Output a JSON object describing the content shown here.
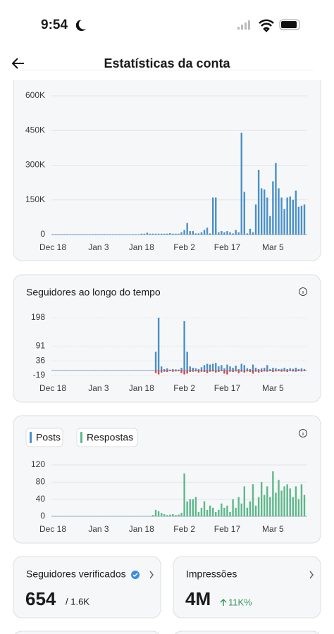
{
  "status": {
    "time": "9:54"
  },
  "header": {
    "title": "Estatísticas da conta"
  },
  "chart_data": [
    {
      "type": "bar",
      "categories": [
        "Dec 18",
        null,
        null,
        null,
        null,
        null,
        null,
        null,
        null,
        null,
        null,
        null,
        null,
        null,
        null,
        null,
        "Jan 3",
        null,
        null,
        null,
        null,
        null,
        null,
        null,
        null,
        null,
        null,
        null,
        null,
        null,
        null,
        "Jan 18",
        null,
        null,
        null,
        null,
        null,
        null,
        null,
        null,
        null,
        null,
        null,
        null,
        null,
        null,
        "Feb 2",
        null,
        null,
        null,
        null,
        null,
        null,
        null,
        null,
        null,
        null,
        null,
        null,
        null,
        null,
        "Feb 17",
        null,
        null,
        null,
        null,
        null,
        null,
        null,
        null,
        null,
        null,
        null,
        null,
        null,
        null,
        null,
        "Mar 5",
        null,
        null,
        null,
        null,
        null,
        null,
        null,
        null,
        null,
        null,
        null
      ],
      "series": [
        {
          "color": "#4a90c9",
          "values": [
            2000,
            2000,
            2000,
            2000,
            2000,
            2000,
            2000,
            2000,
            2000,
            2000,
            2000,
            2000,
            2000,
            2000,
            2000,
            2000,
            2000,
            2000,
            2000,
            2000,
            2000,
            2000,
            2000,
            2000,
            2000,
            2000,
            2000,
            2000,
            2000,
            2000,
            2000,
            4000,
            4000,
            8000,
            4000,
            4000,
            4000,
            4000,
            4000,
            4000,
            4000,
            6000,
            4000,
            4000,
            4000,
            10000,
            20000,
            50000,
            15000,
            15000,
            5000,
            5000,
            10000,
            20000,
            30000,
            5000,
            160000,
            160000,
            10000,
            15000,
            10000,
            15000,
            10000,
            5000,
            20000,
            10000,
            440000,
            185000,
            5000,
            25000,
            10000,
            130000,
            280000,
            200000,
            195000,
            160000,
            80000,
            230000,
            310000,
            200000,
            160000,
            110000,
            160000,
            165000,
            150000,
            190000,
            120000,
            125000,
            130000
          ]
        }
      ],
      "ylim": [
        0,
        600000
      ],
      "yticks": [
        0,
        {
          "value": 150000,
          "label": "150K"
        },
        {
          "value": 300000,
          "label": "300K"
        },
        {
          "value": 450000,
          "label": "450K"
        },
        {
          "value": 600000,
          "label": "600K"
        }
      ],
      "grid": true
    },
    {
      "type": "bar",
      "title": "Seguidores ao longo do tempo",
      "categories": [
        "Dec 18",
        null,
        null,
        null,
        null,
        null,
        null,
        null,
        null,
        null,
        null,
        null,
        null,
        null,
        null,
        null,
        "Jan 3",
        null,
        null,
        null,
        null,
        null,
        null,
        null,
        null,
        null,
        null,
        null,
        null,
        null,
        null,
        "Jan 18",
        null,
        null,
        null,
        null,
        null,
        null,
        null,
        null,
        null,
        null,
        null,
        null,
        null,
        null,
        "Feb 2",
        null,
        null,
        null,
        null,
        null,
        null,
        null,
        null,
        null,
        null,
        null,
        null,
        null,
        null,
        "Feb 17",
        null,
        null,
        null,
        null,
        null,
        null,
        null,
        null,
        null,
        null,
        null,
        null,
        null,
        null,
        null,
        "Mar 5",
        null,
        null,
        null,
        null,
        null,
        null,
        null,
        null,
        null,
        null,
        null
      ],
      "series": [
        {
          "color": "#4a90c9",
          "values": [
            1,
            1,
            1,
            1,
            1,
            1,
            1,
            1,
            1,
            1,
            1,
            1,
            1,
            1,
            1,
            1,
            1,
            1,
            1,
            1,
            1,
            1,
            1,
            1,
            1,
            1,
            1,
            1,
            1,
            1,
            1,
            1,
            1,
            1,
            1,
            1,
            70,
            198,
            15,
            5,
            8,
            3,
            5,
            4,
            3,
            10,
            185,
            70,
            15,
            10,
            8,
            5,
            12,
            20,
            25,
            22,
            25,
            28,
            15,
            20,
            8,
            22,
            15,
            10,
            18,
            5,
            25,
            20,
            8,
            5,
            22,
            10,
            5,
            8,
            10,
            20,
            5,
            10,
            8,
            5,
            6,
            10,
            5,
            8,
            6,
            10,
            5,
            8,
            5
          ]
        },
        {
          "color": "#d64545",
          "values": [
            0,
            0,
            0,
            0,
            0,
            0,
            0,
            0,
            0,
            0,
            0,
            0,
            0,
            0,
            0,
            0,
            0,
            0,
            0,
            0,
            0,
            0,
            0,
            0,
            0,
            0,
            0,
            0,
            0,
            0,
            0,
            0,
            0,
            0,
            0,
            0,
            -10,
            -15,
            -8,
            -5,
            -6,
            -3,
            -5,
            -4,
            -3,
            -10,
            -15,
            -12,
            -6,
            -5,
            -4,
            -8,
            -5,
            -6,
            -10,
            -5,
            -4,
            -8,
            -6,
            -3,
            -12,
            -15,
            -5,
            -6,
            -4,
            -10,
            -5,
            -8,
            -4,
            -6,
            -12,
            -5,
            -8,
            -6,
            -4,
            -5,
            -3,
            -6,
            -4,
            -3,
            -5,
            -4,
            -6,
            -3,
            -4,
            -5,
            -3,
            -4,
            -3
          ]
        }
      ],
      "ylim": [
        -19,
        198
      ],
      "yticks": [
        -19,
        36,
        91,
        198
      ],
      "grid": true
    },
    {
      "type": "bar",
      "categories": [
        "Dec 18",
        null,
        null,
        null,
        null,
        null,
        null,
        null,
        null,
        null,
        null,
        null,
        null,
        null,
        null,
        null,
        "Jan 3",
        null,
        null,
        null,
        null,
        null,
        null,
        null,
        null,
        null,
        null,
        null,
        null,
        null,
        null,
        "Jan 18",
        null,
        null,
        null,
        null,
        null,
        null,
        null,
        null,
        null,
        null,
        null,
        null,
        null,
        null,
        "Feb 2",
        null,
        null,
        null,
        null,
        null,
        null,
        null,
        null,
        null,
        null,
        null,
        null,
        null,
        null,
        "Feb 17",
        null,
        null,
        null,
        null,
        null,
        null,
        null,
        null,
        null,
        null,
        null,
        null,
        null,
        null,
        null,
        "Mar 5",
        null,
        null,
        null,
        null,
        null,
        null,
        null,
        null,
        null,
        null,
        null
      ],
      "series": [
        {
          "name": "Posts",
          "color": "#4a90c9",
          "values": [
            0,
            0,
            0,
            0,
            0,
            0,
            0,
            0,
            0,
            0,
            0,
            0,
            0,
            0,
            0,
            0,
            0,
            0,
            0,
            0,
            0,
            0,
            0,
            0,
            0,
            0,
            0,
            0,
            0,
            0,
            0,
            0,
            0,
            0,
            0,
            0,
            0,
            0,
            0,
            0,
            0,
            0,
            0,
            0,
            0,
            0,
            0,
            0,
            0,
            0,
            0,
            0,
            0,
            0,
            0,
            0,
            0,
            0,
            0,
            0,
            0,
            0,
            0,
            0,
            0,
            0,
            0,
            0,
            0,
            0,
            0,
            0,
            0,
            0,
            0,
            0,
            0,
            0,
            0,
            0,
            0,
            0,
            0,
            0,
            0,
            0,
            0,
            0,
            0
          ]
        },
        {
          "name": "Respostas",
          "color": "#5cb88a",
          "values": [
            1,
            1,
            1,
            1,
            1,
            1,
            1,
            1,
            1,
            1,
            1,
            1,
            1,
            1,
            1,
            1,
            1,
            1,
            1,
            1,
            1,
            1,
            1,
            1,
            1,
            1,
            1,
            1,
            1,
            1,
            1,
            1,
            1,
            1,
            1,
            3,
            15,
            12,
            8,
            5,
            3,
            4,
            5,
            3,
            4,
            8,
            100,
            35,
            40,
            40,
            45,
            10,
            20,
            35,
            15,
            25,
            20,
            10,
            15,
            30,
            20,
            25,
            10,
            40,
            20,
            45,
            30,
            70,
            20,
            35,
            75,
            25,
            45,
            80,
            50,
            70,
            45,
            105,
            55,
            85,
            60,
            70,
            75,
            65,
            45,
            70,
            40,
            75,
            50
          ]
        }
      ],
      "ylim": [
        0,
        120
      ],
      "yticks": [
        0,
        40,
        80,
        120
      ],
      "grid": true
    }
  ],
  "cards": [
    {
      "title": "Seguidores verificados",
      "value": "654",
      "sub": "/ 1.6K"
    },
    {
      "title": "Impressões",
      "value": "4M",
      "change": "11K%"
    }
  ]
}
